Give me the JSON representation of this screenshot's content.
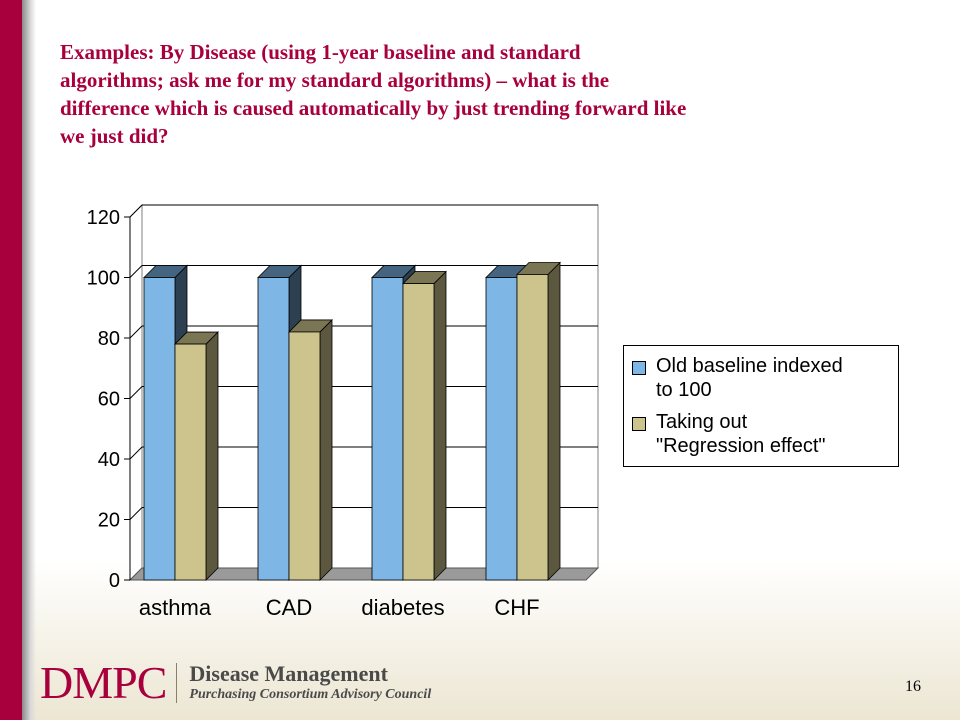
{
  "slide": {
    "title": "Examples:  By Disease (using 1-year baseline and standard\nalgorithms;  ask me for my standard algorithms) – what is the\ndifference which is caused automatically by just trending forward like\nwe just did?",
    "page_number": "16"
  },
  "footer": {
    "logo_mark": "DMPC",
    "logo_name": "Disease Management",
    "logo_sub": "Purchasing Consortium Advisory Council"
  },
  "colors": {
    "brand": "#a8003c",
    "series_1": "#7eb6e6",
    "series_2": "#ccc48c"
  },
  "chart_data": {
    "type": "bar",
    "categories": [
      "asthma",
      "CAD",
      "diabetes",
      "CHF"
    ],
    "series": [
      {
        "name": "Old baseline indexed\nto 100",
        "values": [
          100,
          100,
          100,
          100
        ]
      },
      {
        "name": "Taking out\n\"Regression effect\"",
        "values": [
          78,
          82,
          98,
          101
        ]
      }
    ],
    "ylim": [
      0,
      120
    ],
    "yticks": [
      0,
      20,
      40,
      60,
      80,
      100,
      120
    ],
    "grid": true,
    "legend_position": "right",
    "style": "3d-column"
  }
}
